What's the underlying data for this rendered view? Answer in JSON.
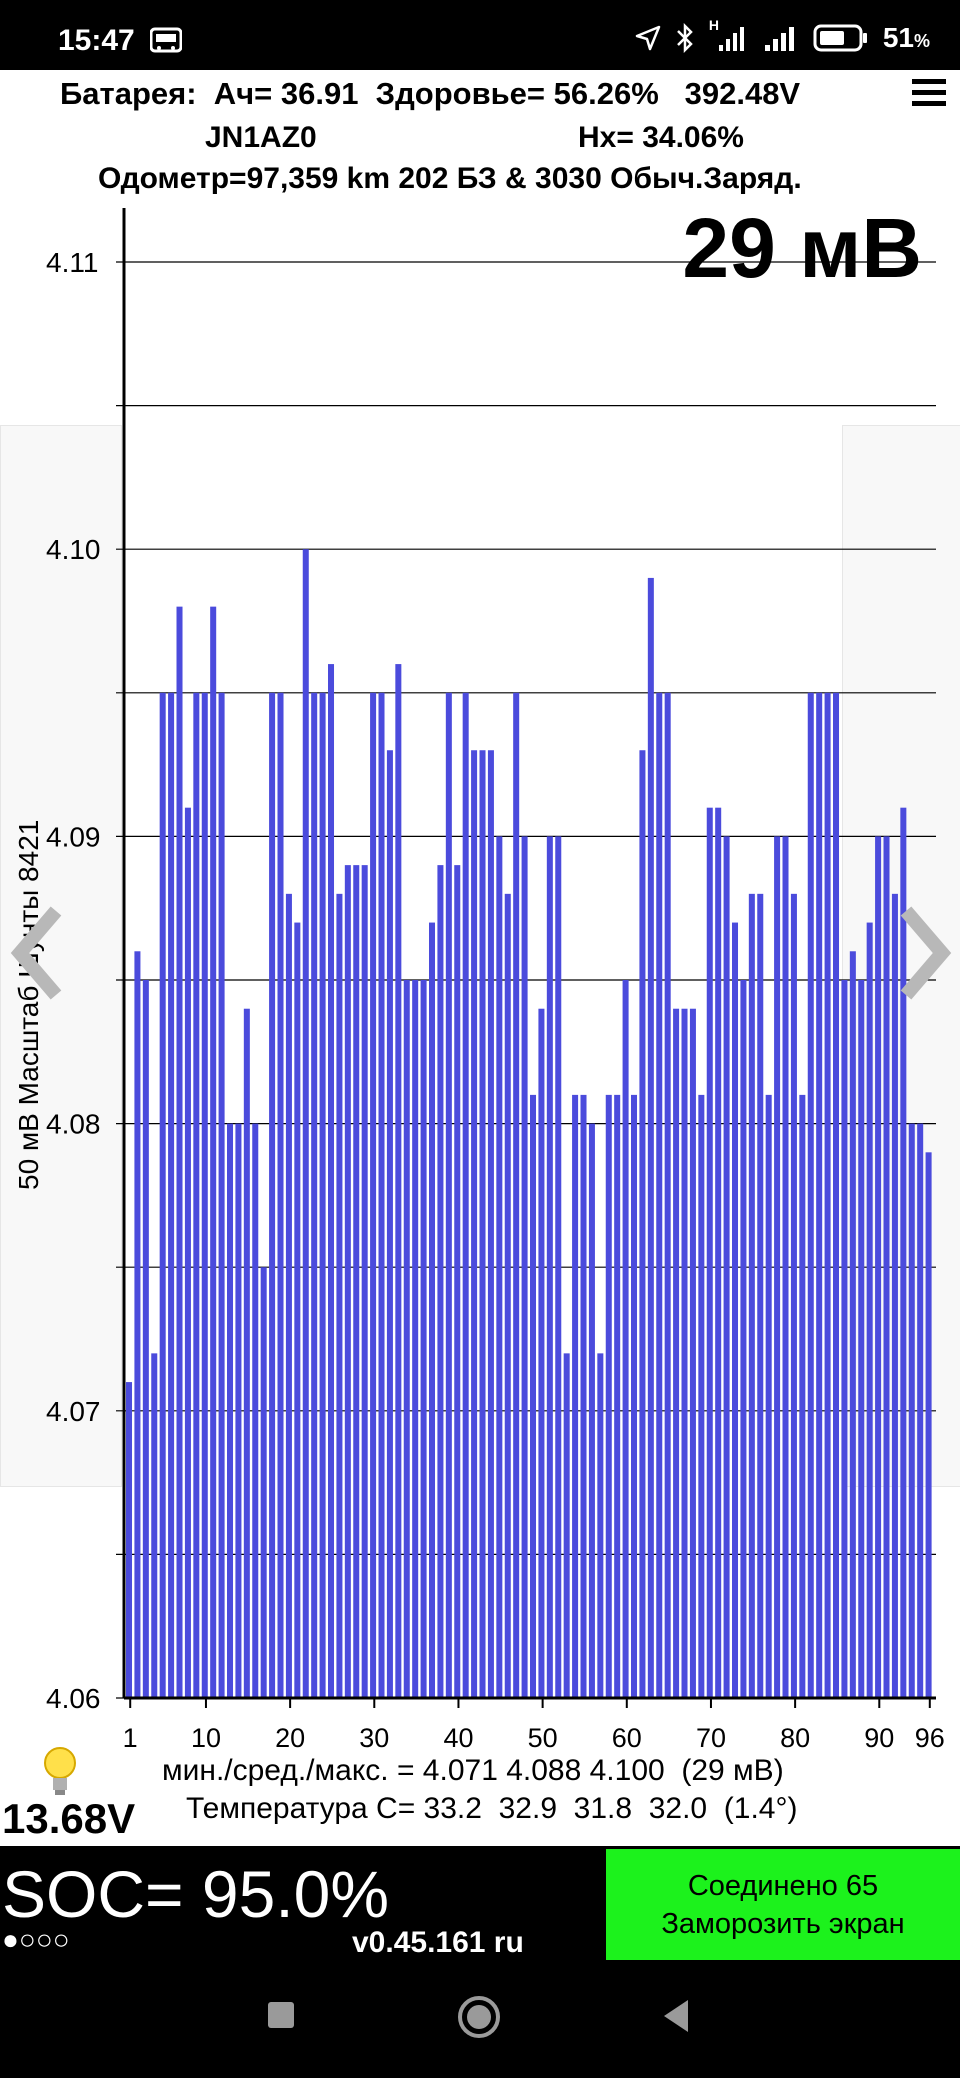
{
  "status_bar": {
    "time": "15:47",
    "battery_percent": "51",
    "battery_suffix": "%",
    "network_label": "H"
  },
  "header": {
    "line1": "Батарея:  Ач= 36.91  Здоровье= 56.26%   392.48V",
    "vin": "JN1AZ0",
    "hx": "Hx= 34.06%",
    "line3": "Одометр=97,359 km 202 БЗ & 3030 Обыч.Заряд.",
    "delta": "29 мВ"
  },
  "chart_data": {
    "type": "bar",
    "ylabel": "50 мВ Масштаб  Шунты 8421",
    "ylim": [
      4.06,
      4.115
    ],
    "y_ticks": [
      "4.11",
      "4.10",
      "4.09",
      "4.08",
      "4.07",
      "4.06"
    ],
    "x_ticks": [
      "1",
      "10",
      "20",
      "30",
      "40",
      "50",
      "60",
      "70",
      "80",
      "90",
      "96"
    ],
    "bar_color": "#4b4bdc",
    "values": [
      4.071,
      4.086,
      4.085,
      4.072,
      4.095,
      4.095,
      4.098,
      4.091,
      4.095,
      4.095,
      4.098,
      4.095,
      4.08,
      4.08,
      4.084,
      4.08,
      4.075,
      4.095,
      4.095,
      4.088,
      4.087,
      4.1,
      4.095,
      4.095,
      4.096,
      4.088,
      4.089,
      4.089,
      4.089,
      4.095,
      4.095,
      4.093,
      4.096,
      4.085,
      4.085,
      4.085,
      4.087,
      4.089,
      4.095,
      4.089,
      4.095,
      4.093,
      4.093,
      4.093,
      4.09,
      4.088,
      4.095,
      4.09,
      4.081,
      4.084,
      4.09,
      4.09,
      4.072,
      4.081,
      4.081,
      4.08,
      4.072,
      4.081,
      4.081,
      4.085,
      4.081,
      4.093,
      4.099,
      4.095,
      4.095,
      4.084,
      4.084,
      4.084,
      4.081,
      4.091,
      4.091,
      4.09,
      4.087,
      4.085,
      4.088,
      4.088,
      4.081,
      4.09,
      4.09,
      4.088,
      4.081,
      4.095,
      4.095,
      4.095,
      4.095,
      4.085,
      4.086,
      4.085,
      4.087,
      4.09,
      4.09,
      4.088,
      4.091,
      4.08,
      4.08,
      4.079
    ]
  },
  "stats": {
    "minmax": "мин./сред./макс. = 4.071 4.088 4.100  (29 мВ)",
    "temperature": "Температура C= 33.2  32.9  31.8  32.0  (1.4°)"
  },
  "aux_voltage": "13.68V",
  "soc": "SOC= 95.0%",
  "dots": "●○○○",
  "version": "v0.45.161 ru",
  "connection": {
    "line1": "Соединено 65",
    "line2": "Заморозить экран"
  },
  "icons": {
    "menu": "hamburger-menu-icon",
    "prev": "chevron-left-icon",
    "next": "chevron-right-icon",
    "bulb": "lightbulb-icon"
  }
}
